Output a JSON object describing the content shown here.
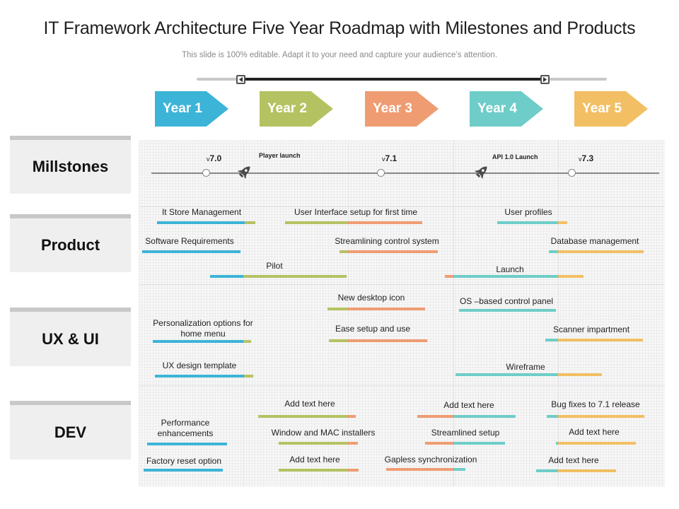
{
  "header": {
    "title": "IT Framework Architecture Five Year Roadmap with Milestones and Products",
    "subtitle": "This slide is 100% editable. Adapt it to your need and capture your audience’s attention."
  },
  "years": [
    {
      "label": "Year 1",
      "color": "#3cb4d7"
    },
    {
      "label": "Year 2",
      "color": "#b5c262"
    },
    {
      "label": "Year 3",
      "color": "#ef9c73"
    },
    {
      "label": "Year 4",
      "color": "#6ecdc8"
    },
    {
      "label": "Year 5",
      "color": "#f2bf64"
    }
  ],
  "rows": {
    "milestones": "Millstones",
    "product": "Product",
    "ux": "UX & UI",
    "dev": "DEV"
  },
  "milestones": {
    "v70_prefix": "v",
    "v70": "7.0",
    "v71_prefix": "v",
    "v71": "7.1",
    "v73_prefix": "v",
    "v73": "7.3",
    "player_launch": "Player launch",
    "api_launch": "API 1.0 Launch"
  },
  "product": {
    "it_store": "It Store Management",
    "ui_setup": "User Interface setup for first time",
    "user_profiles": "User profiles",
    "software_req": "Software Requirements",
    "streamlining": "Streamlining control system",
    "db_mgmt": "Database management",
    "pilot": "Pilot",
    "launch": "Launch"
  },
  "ux": {
    "new_icon": "New desktop icon",
    "os_panel": "OS –based control panel",
    "personalization": "Personalization options for home menu",
    "ease_setup": "Ease setup and use",
    "scanner": "Scanner impartment",
    "ux_template": "UX design template",
    "wireframe": "Wireframe"
  },
  "dev": {
    "add_text_1": "Add text here",
    "add_text_2": "Add text here",
    "bug_fixes": "Bug fixes to 7.1 release",
    "performance": "Performance enhancements",
    "installers": "Window and MAC installers",
    "streamlined": "Streamlined setup",
    "add_text_3": "Add text here",
    "factory_reset": "Factory reset option",
    "add_text_4": "Add text here",
    "gapless": "Gapless synchronization",
    "add_text_5": "Add text here"
  }
}
